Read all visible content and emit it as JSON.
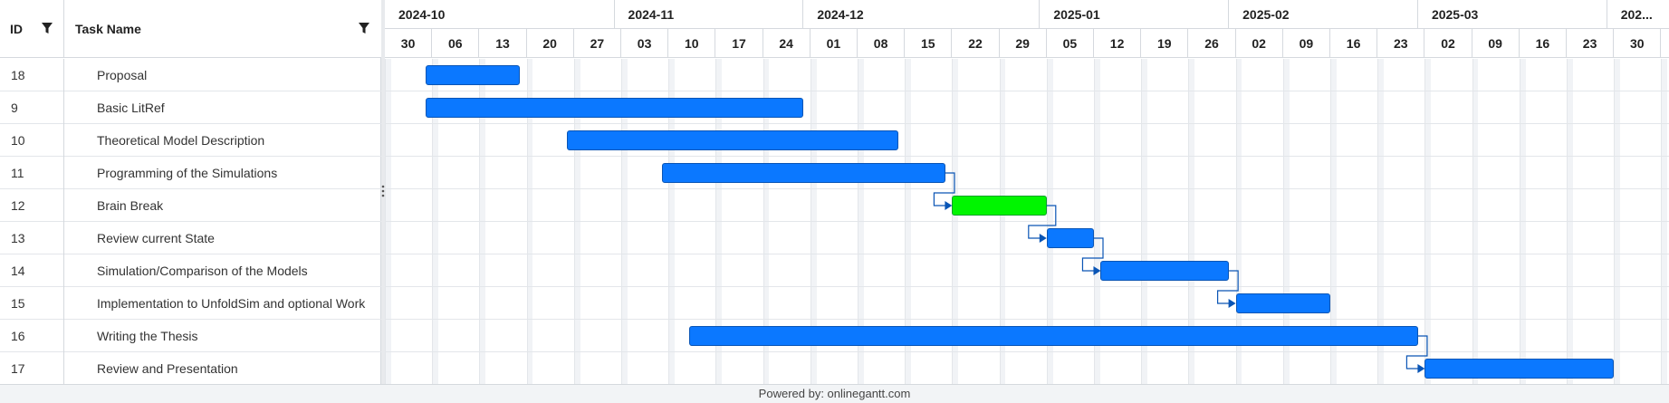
{
  "grid": {
    "id_header": "ID",
    "name_header": "Task Name",
    "rows": [
      {
        "id": "18",
        "name": "Proposal"
      },
      {
        "id": "9",
        "name": "Basic LitRef"
      },
      {
        "id": "10",
        "name": "Theoretical Model Description"
      },
      {
        "id": "11",
        "name": "Programming of the Simulations"
      },
      {
        "id": "12",
        "name": "Brain Break"
      },
      {
        "id": "13",
        "name": "Review current State"
      },
      {
        "id": "14",
        "name": "Simulation/Comparison of the Models"
      },
      {
        "id": "15",
        "name": "Implementation to UnfoldSim and optional Work"
      },
      {
        "id": "16",
        "name": "Writing the Thesis"
      },
      {
        "id": "17",
        "name": "Review and Presentation"
      }
    ]
  },
  "timeline": {
    "months": [
      "2024-10",
      "2024-11",
      "2024-12",
      "2025-01",
      "2025-02",
      "2025-03",
      "202..."
    ],
    "weeks": [
      "30",
      "06",
      "13",
      "20",
      "27",
      "03",
      "10",
      "17",
      "24",
      "01",
      "08",
      "15",
      "22",
      "29",
      "05",
      "12",
      "19",
      "26",
      "02",
      "09",
      "16",
      "23",
      "02",
      "09",
      "16",
      "23",
      "30"
    ]
  },
  "tasks": [
    {
      "id": "18",
      "start": "2024-10-06",
      "end": "2024-10-20",
      "color": "#0b78ff"
    },
    {
      "id": "9",
      "start": "2024-10-06",
      "end": "2024-12-01",
      "color": "#0b78ff"
    },
    {
      "id": "10",
      "start": "2024-10-27",
      "end": "2024-12-15",
      "color": "#0b78ff"
    },
    {
      "id": "11",
      "start": "2024-11-10",
      "end": "2024-12-22",
      "color": "#0b78ff"
    },
    {
      "id": "12",
      "start": "2024-12-23",
      "end": "2025-01-06",
      "color": "#00f500"
    },
    {
      "id": "13",
      "start": "2025-01-06",
      "end": "2025-01-13",
      "color": "#0b78ff"
    },
    {
      "id": "14",
      "start": "2025-01-14",
      "end": "2025-02-02",
      "color": "#0b78ff"
    },
    {
      "id": "15",
      "start": "2025-02-03",
      "end": "2025-02-17",
      "color": "#0b78ff"
    },
    {
      "id": "16",
      "start": "2024-11-14",
      "end": "2025-03-02",
      "color": "#0b78ff"
    },
    {
      "id": "17",
      "start": "2025-03-03",
      "end": "2025-03-31",
      "color": "#0b78ff"
    }
  ],
  "dependencies": [
    {
      "from": "11",
      "to": "12"
    },
    {
      "from": "12",
      "to": "13"
    },
    {
      "from": "13",
      "to": "14"
    },
    {
      "from": "14",
      "to": "15"
    },
    {
      "from": "16",
      "to": "17"
    }
  ],
  "footer": {
    "text": "Powered by: onlinegantt.com"
  }
}
